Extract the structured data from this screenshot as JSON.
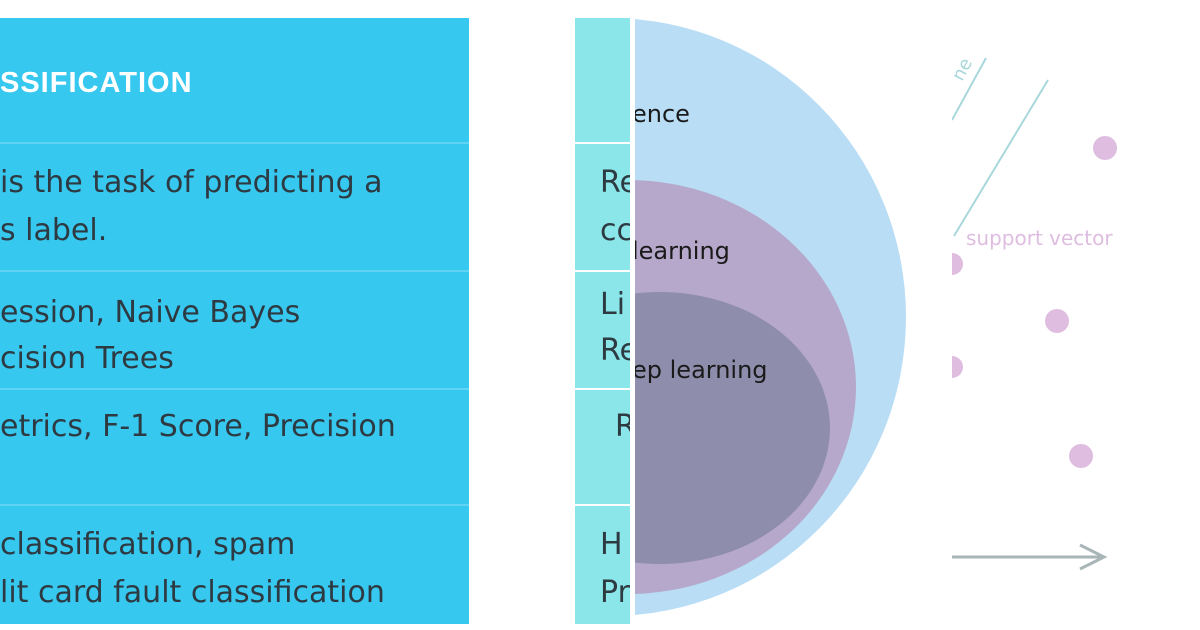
{
  "colors": {
    "table_blue": "#37c8f0",
    "table_blue_line": "#5fd4f4",
    "table_teal": "#8ae6e8",
    "circle_outer": "#b9ddf5",
    "circle_middle": "#b6a8cb",
    "circle_inner": "#8f8dac",
    "svm_dots": "#dfbde0",
    "svm_lines": "#a8d7dc",
    "axis_arrow": "#a8b6b8"
  },
  "left_table": {
    "header": "SSIFICATION",
    "rows": [
      {
        "lines": [
          " is the task of predicting a",
          "s label."
        ]
      },
      {
        "lines": [
          "ession, Naive Bayes",
          "cision Trees"
        ]
      },
      {
        "lines": [
          "etrics, F-1 Score, Precision"
        ]
      },
      {
        "lines": [
          " classification, spam",
          "lit card fault classification"
        ]
      }
    ]
  },
  "right_table": {
    "rows": [
      {
        "lines": [
          "Re",
          "cc"
        ]
      },
      {
        "lines": [
          "Li",
          "Re"
        ]
      },
      {
        "lines": [
          "R"
        ]
      },
      {
        "lines": [
          "H",
          "Pr"
        ]
      }
    ]
  },
  "venn": {
    "outer_label": "ence",
    "middle_label": "learning",
    "inner_label": "ep learning"
  },
  "svm": {
    "support_vector_label": "support vector",
    "rotated_label": "ne"
  }
}
